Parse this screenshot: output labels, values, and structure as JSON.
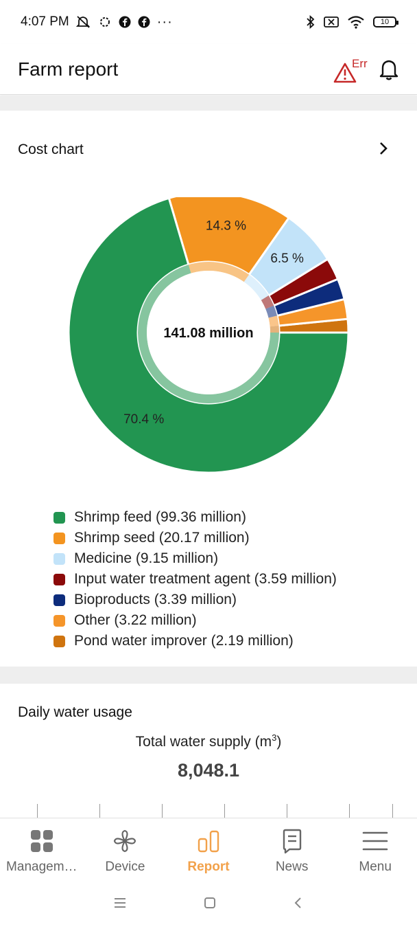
{
  "status_bar": {
    "time": "4:07 PM",
    "overflow": "···",
    "battery": "10"
  },
  "header": {
    "title": "Farm report",
    "error_badge": "Err"
  },
  "cost_chart": {
    "title": "Cost chart",
    "center_total": "141.08 million"
  },
  "chart_data": {
    "type": "pie",
    "title": "Cost chart",
    "total": "141.08 million",
    "categories": [
      "Shrimp feed",
      "Shrimp seed",
      "Medicine",
      "Input water treatment agent",
      "Bioproducts",
      "Other",
      "Pond water improver"
    ],
    "values": [
      99.36,
      20.17,
      9.15,
      3.59,
      3.39,
      3.22,
      2.19
    ],
    "unit": "million",
    "slice_labels": [
      "70.4 %",
      "14.3 %",
      "6.5 %",
      "",
      "",
      "",
      ""
    ],
    "colors": [
      "#229551",
      "#f39420",
      "#c2e3f9",
      "#8b0a0a",
      "#0d2c7c",
      "#f5952a",
      "#cf740f"
    ],
    "legend": [
      "Shrimp feed (99.36 million)",
      "Shrimp seed (20.17 million)",
      "Medicine (9.15 million)",
      "Input water treatment agent (3.59 million)",
      "Bioproducts (3.39 million)",
      "Other (3.22 million)",
      "Pond water improver (2.19 million)"
    ],
    "legend_placement": "bottom"
  },
  "water": {
    "title": "Daily water usage",
    "label": "Total water supply (m",
    "label_sup": "3",
    "label_close": ")",
    "value": "8,048.1"
  },
  "bottom_nav": {
    "items": [
      {
        "label": "Managem…",
        "icon": "grid-icon"
      },
      {
        "label": "Device",
        "icon": "fan-icon"
      },
      {
        "label": "Report",
        "icon": "bar-chart-icon"
      },
      {
        "label": "News",
        "icon": "news-icon"
      },
      {
        "label": "Menu",
        "icon": "hamburger-menu-icon"
      }
    ],
    "active": "Report",
    "active_color": "#f2a14a"
  }
}
